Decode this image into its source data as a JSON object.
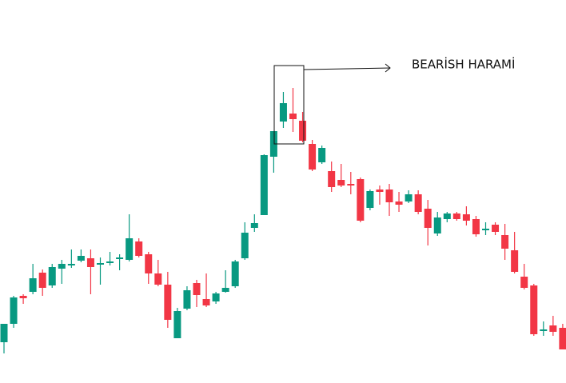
{
  "chart_data": {
    "type": "candlestick",
    "annotation": "BEARİSH HARAMİ",
    "up_color": "#089981",
    "down_color": "#f23645",
    "open": [
      52,
      75,
      110,
      115,
      139,
      123,
      144,
      148,
      154,
      157,
      149,
      151,
      156,
      155,
      178,
      162,
      138,
      124,
      57,
      94,
      126,
      106,
      103,
      115,
      122,
      157,
      195,
      211,
      284,
      328,
      338,
      329,
      300,
      277,
      266,
      255,
      250,
      256,
      220,
      243,
      243,
      228,
      228,
      237,
      219,
      188,
      206,
      213,
      212,
      206,
      192,
      199,
      186,
      167,
      134,
      123,
      66,
      73,
      70
    ],
    "high": [
      75,
      110,
      112,
      150,
      143,
      150,
      155,
      168,
      168,
      168,
      158,
      165,
      162,
      212,
      182,
      165,
      155,
      140,
      95,
      122,
      130,
      138,
      115,
      142,
      155,
      202,
      212,
      287,
      316,
      365,
      370,
      340,
      305,
      298,
      278,
      275,
      265,
      258,
      243,
      248,
      250,
      240,
      242,
      242,
      230,
      215,
      215,
      215,
      222,
      210,
      202,
      202,
      200,
      190,
      150,
      125,
      78,
      85,
      75
    ],
    "low": [
      38,
      70,
      100,
      112,
      110,
      120,
      125,
      145,
      152,
      112,
      124,
      148,
      142,
      153,
      158,
      125,
      122,
      70,
      57,
      92,
      96,
      96,
      100,
      114,
      120,
      155,
      190,
      211,
      264,
      320,
      315,
      302,
      266,
      275,
      240,
      246,
      237,
      202,
      217,
      224,
      210,
      215,
      226,
      212,
      173,
      185,
      202,
      204,
      198,
      184,
      186,
      186,
      155,
      138,
      118,
      60,
      60,
      60,
      43
    ],
    "close": [
      75,
      108,
      107,
      132,
      120,
      146,
      150,
      150,
      160,
      146,
      151,
      153,
      158,
      182,
      160,
      138,
      124,
      80,
      91,
      117,
      111,
      98,
      113,
      120,
      153,
      189,
      201,
      286,
      316,
      351,
      331,
      304,
      268,
      295,
      246,
      248,
      248,
      204,
      241,
      240,
      227,
      224,
      237,
      215,
      195,
      208,
      213,
      206,
      204,
      187,
      194,
      190,
      169,
      140,
      120,
      62,
      68,
      65,
      43
    ]
  }
}
